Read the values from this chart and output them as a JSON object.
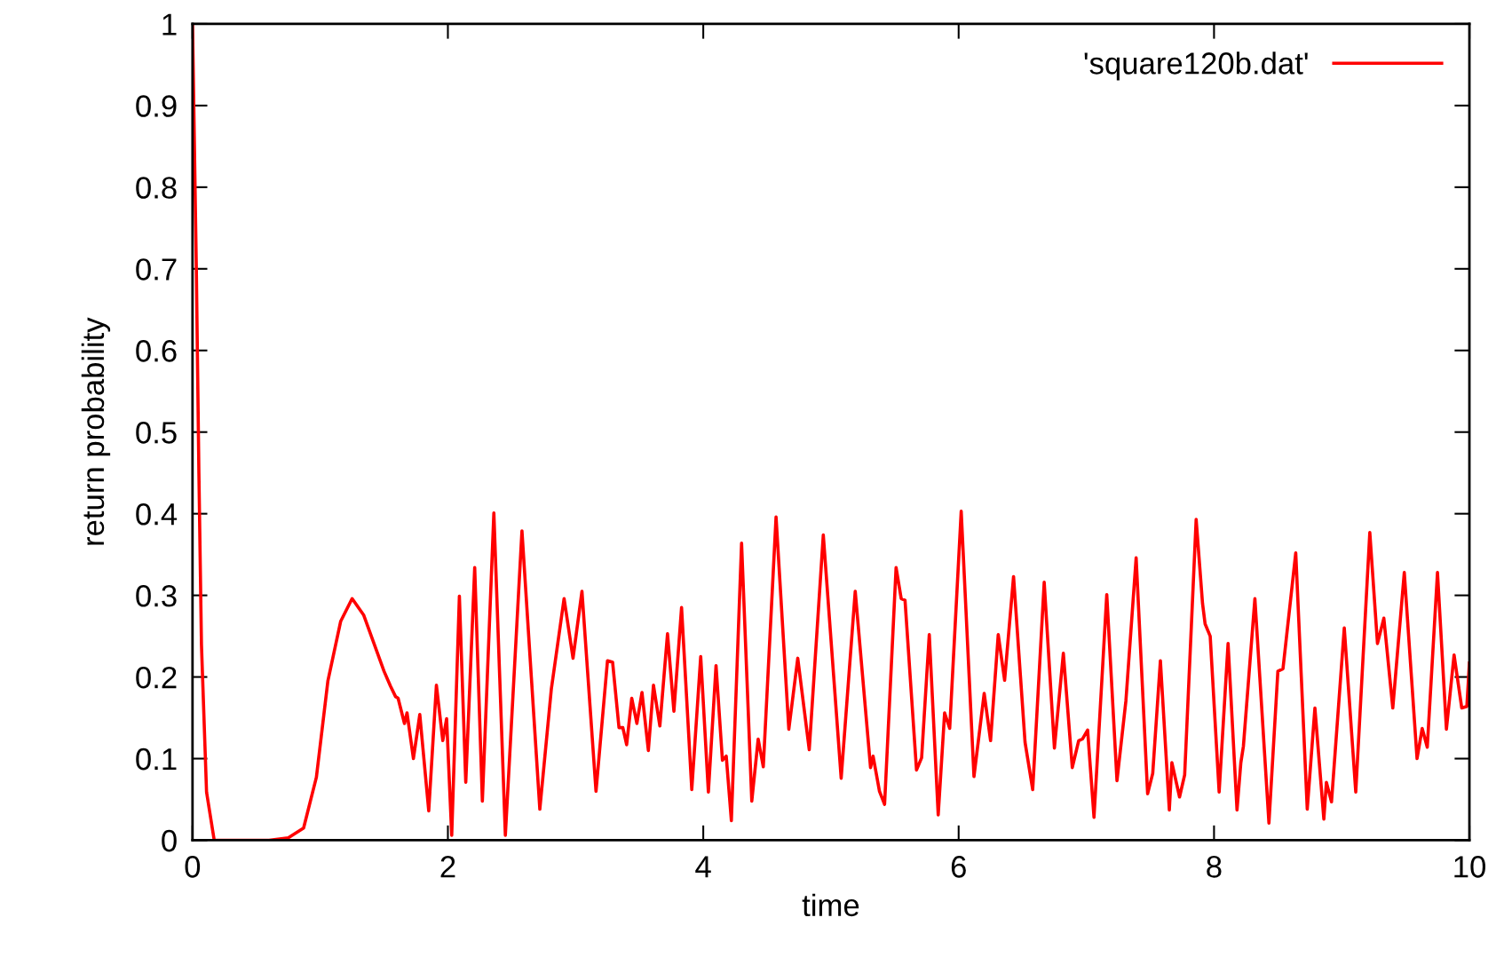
{
  "chart_data": {
    "type": "line",
    "xlabel": "time",
    "ylabel": "return probability",
    "xlim": [
      0,
      10
    ],
    "xticks": [
      0,
      2,
      4,
      6,
      8,
      10
    ],
    "ylim": [
      0,
      1
    ],
    "yticks": [
      0,
      0.1,
      0.2,
      0.3,
      0.4,
      0.5,
      0.6,
      0.7,
      0.8,
      0.9,
      1
    ],
    "grid": false,
    "legend": "top right",
    "marker": "none",
    "line_style": "solid",
    "series": [
      {
        "name": "'square120b.dat'",
        "color": "#ff0000",
        "x": [
          0,
          0.03,
          0.05,
          0.07,
          0.11,
          0.17,
          0.4,
          0.6,
          0.75,
          0.87,
          0.97,
          1.06,
          1.16,
          1.25,
          1.34,
          1.5,
          1.55,
          1.59,
          1.61,
          1.66,
          1.68,
          1.73,
          1.78,
          1.85,
          1.91,
          1.96,
          1.99,
          2.03,
          2.09,
          2.14,
          2.21,
          2.27,
          2.36,
          2.45,
          2.58,
          2.72,
          2.81,
          2.91,
          2.98,
          3.05,
          3.16,
          3.25,
          3.29,
          3.34,
          3.37,
          3.4,
          3.44,
          3.48,
          3.52,
          3.57,
          3.61,
          3.66,
          3.72,
          3.77,
          3.83,
          3.91,
          3.98,
          4.04,
          4.1,
          4.15,
          4.18,
          4.22,
          4.3,
          4.38,
          4.43,
          4.47,
          4.57,
          4.67,
          4.74,
          4.83,
          4.94,
          5.08,
          5.19,
          5.31,
          5.33,
          5.38,
          5.42,
          5.51,
          5.55,
          5.58,
          5.67,
          5.71,
          5.77,
          5.84,
          5.89,
          5.93,
          6.02,
          6.12,
          6.2,
          6.25,
          6.31,
          6.36,
          6.43,
          6.52,
          6.58,
          6.67,
          6.75,
          6.82,
          6.89,
          6.94,
          6.97,
          7.01,
          7.06,
          7.16,
          7.24,
          7.31,
          7.39,
          7.48,
          7.52,
          7.58,
          7.65,
          7.67,
          7.73,
          7.77,
          7.86,
          7.91,
          7.93,
          7.97,
          8.04,
          8.11,
          8.18,
          8.21,
          8.23,
          8.32,
          8.43,
          8.5,
          8.54,
          8.64,
          8.73,
          8.79,
          8.86,
          8.88,
          8.92,
          9.02,
          9.11,
          9.22,
          9.28,
          9.33,
          9.4,
          9.49,
          9.59,
          9.63,
          9.67,
          9.75,
          9.82,
          9.88,
          9.94,
          9.98,
          10
        ],
        "values": [
          1.0,
          0.7,
          0.45,
          0.24,
          0.059,
          0.0,
          0.0,
          0.0,
          0.003,
          0.015,
          0.077,
          0.195,
          0.268,
          0.296,
          0.276,
          0.207,
          0.189,
          0.176,
          0.174,
          0.143,
          0.156,
          0.1,
          0.154,
          0.036,
          0.19,
          0.122,
          0.149,
          0.006,
          0.299,
          0.071,
          0.334,
          0.048,
          0.401,
          0.006,
          0.379,
          0.038,
          0.185,
          0.296,
          0.223,
          0.305,
          0.06,
          0.22,
          0.218,
          0.138,
          0.138,
          0.117,
          0.174,
          0.143,
          0.181,
          0.11,
          0.19,
          0.14,
          0.253,
          0.158,
          0.285,
          0.062,
          0.225,
          0.059,
          0.214,
          0.098,
          0.103,
          0.024,
          0.364,
          0.048,
          0.124,
          0.09,
          0.396,
          0.136,
          0.223,
          0.111,
          0.374,
          0.076,
          0.305,
          0.089,
          0.103,
          0.06,
          0.044,
          0.334,
          0.296,
          0.294,
          0.086,
          0.101,
          0.252,
          0.031,
          0.156,
          0.137,
          0.403,
          0.078,
          0.18,
          0.122,
          0.252,
          0.196,
          0.323,
          0.12,
          0.062,
          0.316,
          0.113,
          0.229,
          0.089,
          0.122,
          0.124,
          0.135,
          0.028,
          0.301,
          0.073,
          0.171,
          0.346,
          0.057,
          0.082,
          0.22,
          0.037,
          0.095,
          0.053,
          0.08,
          0.393,
          0.29,
          0.265,
          0.25,
          0.059,
          0.241,
          0.037,
          0.095,
          0.115,
          0.296,
          0.021,
          0.207,
          0.21,
          0.352,
          0.038,
          0.162,
          0.026,
          0.071,
          0.047,
          0.26,
          0.059,
          0.377,
          0.241,
          0.272,
          0.162,
          0.328,
          0.1,
          0.137,
          0.114,
          0.328,
          0.136,
          0.227,
          0.162,
          0.164,
          0.217
        ]
      }
    ]
  }
}
